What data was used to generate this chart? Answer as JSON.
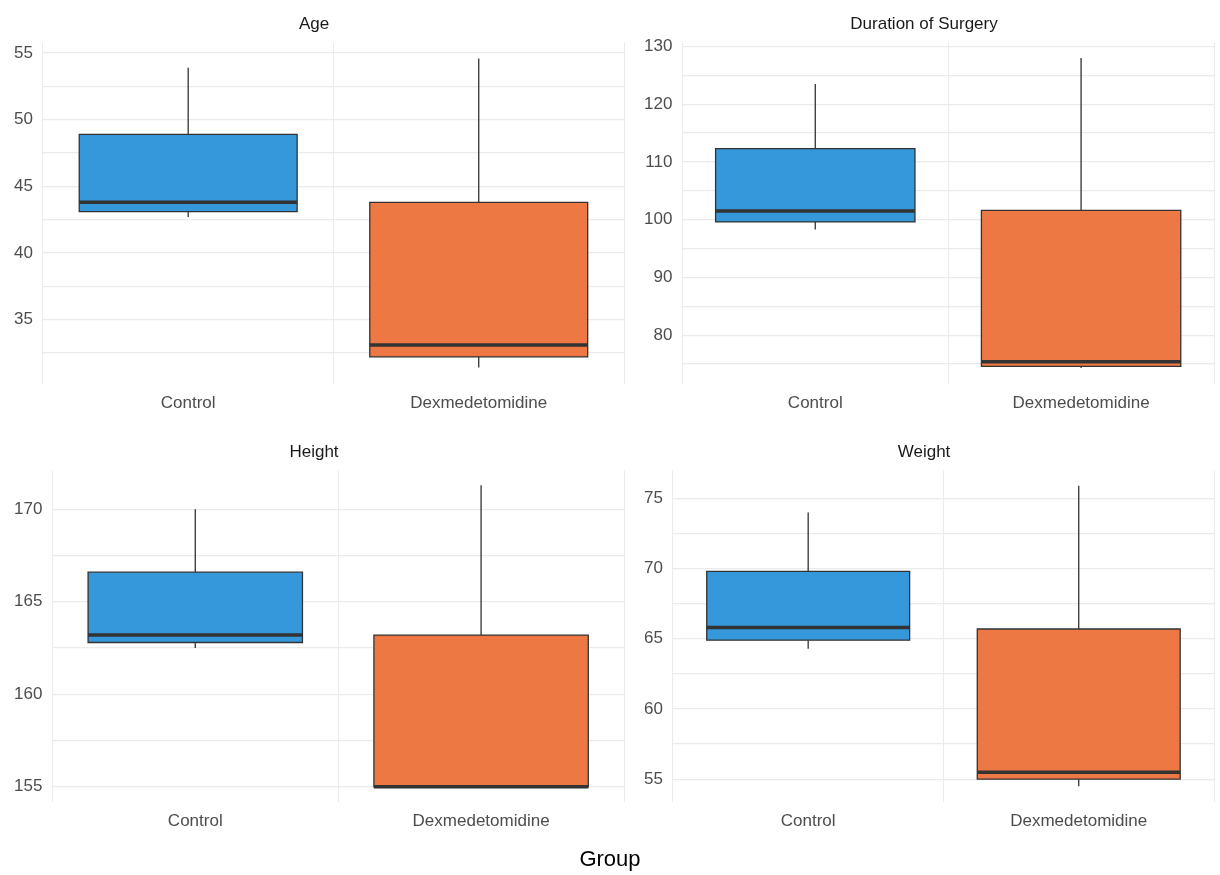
{
  "chart_data": [
    {
      "type": "box",
      "title": "Age",
      "categories": [
        "Control",
        "Dexmedetomidine"
      ],
      "grid": true,
      "ylim": [
        30.2,
        55.8
      ],
      "yticks": [
        {
          "value": 32.5,
          "label": null
        },
        35,
        {
          "value": 37.5,
          "label": null
        },
        40,
        {
          "value": 42.5,
          "label": null
        },
        45,
        {
          "value": 47.5,
          "label": null
        },
        50,
        {
          "value": 52.5,
          "label": null
        },
        55
      ],
      "series": [
        {
          "colors": [
            "#3498db",
            "#ed7843"
          ],
          "boxes": [
            {
              "low": 42.7,
              "q1": 43.1,
              "median": 43.8,
              "q3": 48.9,
              "high": 53.9
            },
            {
              "low": 31.4,
              "q1": 32.2,
              "median": 33.1,
              "q3": 43.8,
              "high": 54.6
            }
          ]
        }
      ]
    },
    {
      "type": "box",
      "title": "Duration of Surgery",
      "categories": [
        "Control",
        "Dexmedetomidine"
      ],
      "grid": true,
      "ylim": [
        71.6,
        130.7
      ],
      "yticks": [
        {
          "value": 75,
          "label": null
        },
        80,
        {
          "value": 85,
          "label": null
        },
        90,
        {
          "value": 95,
          "label": null
        },
        100,
        {
          "value": 105,
          "label": null
        },
        110,
        {
          "value": 115,
          "label": null
        },
        120,
        {
          "value": 125,
          "label": null
        },
        130
      ],
      "series": [
        {
          "colors": [
            "#3498db",
            "#ed7843"
          ],
          "boxes": [
            {
              "low": 98.3,
              "q1": 99.6,
              "median": 101.5,
              "q3": 112.3,
              "high": 123.5
            },
            {
              "low": 74.3,
              "q1": 74.6,
              "median": 75.4,
              "q3": 101.6,
              "high": 128.0
            }
          ]
        }
      ]
    },
    {
      "type": "box",
      "title": "Height",
      "categories": [
        "Control",
        "Dexmedetomidine"
      ],
      "grid": true,
      "ylim": [
        154.2,
        172.1
      ],
      "yticks": [
        155,
        {
          "value": 157.5,
          "label": null
        },
        160,
        {
          "value": 162.5,
          "label": null
        },
        165,
        {
          "value": 167.5,
          "label": null
        },
        170
      ],
      "series": [
        {
          "colors": [
            "#3498db",
            "#ed7843"
          ],
          "boxes": [
            {
              "low": 162.5,
              "q1": 162.8,
              "median": 163.2,
              "q3": 166.6,
              "high": 170.0
            },
            {
              "low": 155.0,
              "q1": 155.0,
              "median": 155.0,
              "q3": 163.2,
              "high": 171.3
            }
          ]
        }
      ]
    },
    {
      "type": "box",
      "title": "Weight",
      "xlabel": "Group",
      "categories": [
        "Control",
        "Dexmedetomidine"
      ],
      "grid": true,
      "ylim": [
        53.4,
        77.0
      ],
      "yticks": [
        55,
        {
          "value": 57.5,
          "label": null
        },
        60,
        {
          "value": 62.5,
          "label": null
        },
        65,
        {
          "value": 67.5,
          "label": null
        },
        70,
        {
          "value": 72.5,
          "label": null
        },
        75
      ],
      "series": [
        {
          "colors": [
            "#3498db",
            "#ed7843"
          ],
          "boxes": [
            {
              "low": 64.3,
              "q1": 64.9,
              "median": 65.8,
              "q3": 69.8,
              "high": 74.0
            },
            {
              "low": 54.5,
              "q1": 55.0,
              "median": 55.5,
              "q3": 65.7,
              "high": 75.9
            }
          ]
        }
      ]
    }
  ]
}
